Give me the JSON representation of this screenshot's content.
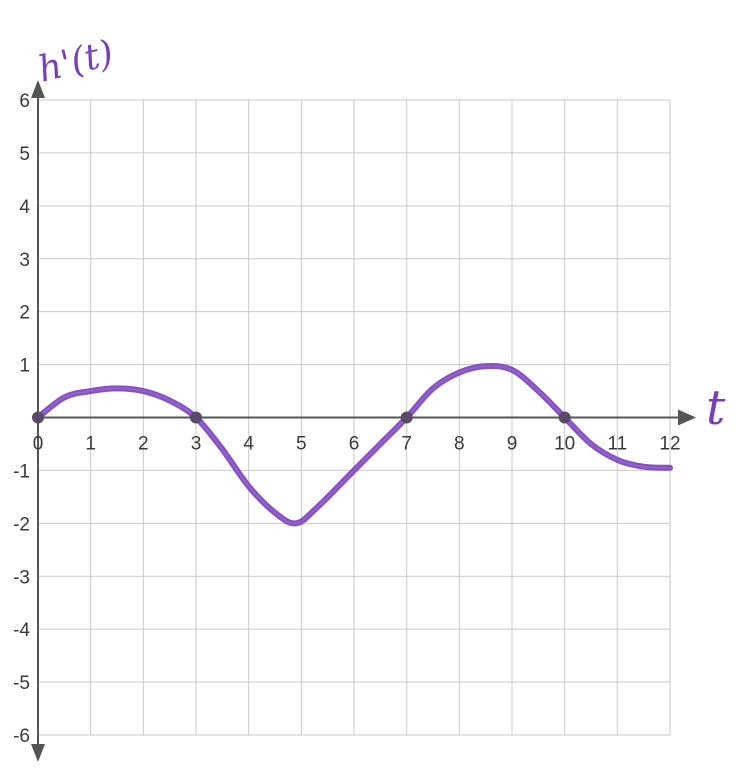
{
  "chart_data": {
    "type": "line",
    "title": "",
    "xlabel": "t",
    "ylabel": "h'(t)",
    "xlim": [
      0,
      12
    ],
    "ylim": [
      -6,
      6
    ],
    "x_ticks": [
      "0",
      "1",
      "2",
      "3",
      "4",
      "5",
      "6",
      "7",
      "8",
      "9",
      "10",
      "11",
      "12"
    ],
    "y_ticks": [
      {
        "value": 6,
        "label": "6"
      },
      {
        "value": 5,
        "label": "5"
      },
      {
        "value": 4,
        "label": "4"
      },
      {
        "value": 3,
        "label": "3"
      },
      {
        "value": 2,
        "label": "2"
      },
      {
        "value": 1,
        "label": "1"
      },
      {
        "value": -1,
        "label": "-1"
      },
      {
        "value": -2,
        "label": "-2"
      },
      {
        "value": -3,
        "label": "-3"
      },
      {
        "value": -4,
        "label": "-4"
      },
      {
        "value": -5,
        "label": "-5"
      },
      {
        "value": -6,
        "label": "-6"
      }
    ],
    "grid": true,
    "curve_color": "#7a3fb8",
    "axis_color": "#555555",
    "grid_color": "#c9c9c9",
    "series": [
      {
        "points": [
          [
            0,
            0
          ],
          [
            0.5,
            0.38
          ],
          [
            1,
            0.5
          ],
          [
            1.5,
            0.55
          ],
          [
            2,
            0.5
          ],
          [
            2.5,
            0.32
          ],
          [
            3,
            0
          ],
          [
            3.5,
            -0.6
          ],
          [
            4,
            -1.3
          ],
          [
            4.5,
            -1.8
          ],
          [
            4.9,
            -2.0
          ],
          [
            5.3,
            -1.7
          ],
          [
            6,
            -1.0
          ],
          [
            6.5,
            -0.5
          ],
          [
            7,
            0
          ],
          [
            7.5,
            0.55
          ],
          [
            8,
            0.85
          ],
          [
            8.5,
            0.97
          ],
          [
            9,
            0.9
          ],
          [
            9.5,
            0.5
          ],
          [
            10,
            0
          ],
          [
            10.5,
            -0.5
          ],
          [
            11,
            -0.8
          ],
          [
            11.5,
            -0.93
          ],
          [
            12,
            -0.95
          ]
        ]
      }
    ],
    "marked_zeros": [
      0,
      3,
      7,
      10
    ]
  }
}
